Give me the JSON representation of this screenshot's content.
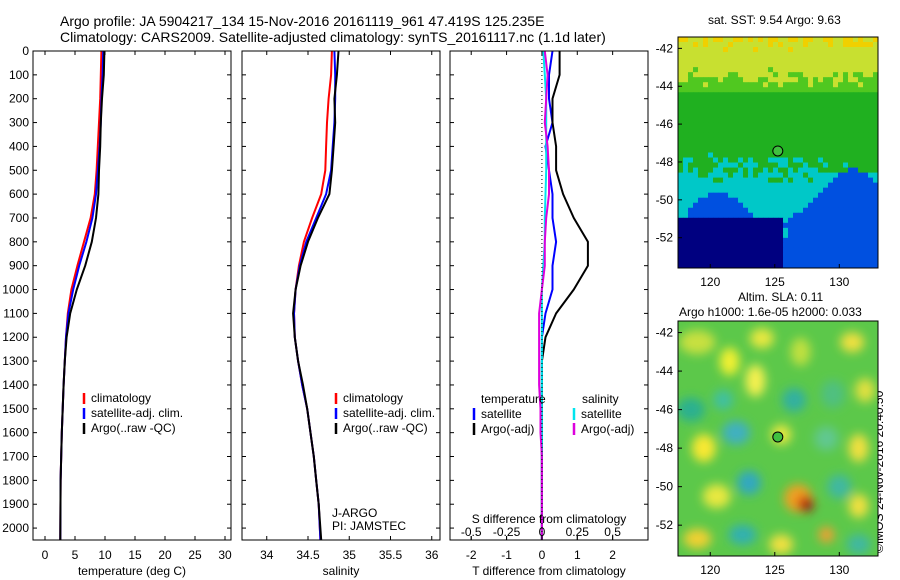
{
  "header": {
    "line1": "Argo profile: JA 5904217_134 15-Nov-2016 20161119_961 47.419S 125.235E",
    "line2": "Climatology: CARS2009. Satellite-adjusted climatology: synTS_20161117.nc (1.1d later)"
  },
  "stamp": "©IMOS 24-Nov-2016 20:40:50",
  "colors": {
    "climatology": "#ff0000",
    "satellite": "#0000ff",
    "argo": "#000000",
    "cyan": "#00e5ee",
    "magenta": "#dd00dd"
  },
  "chart_data": [
    {
      "type": "line",
      "id": "temperature",
      "xlabel": "temperature (deg C)",
      "xlim": [
        -2,
        31
      ],
      "xticks": [
        0,
        5,
        10,
        15,
        20,
        25,
        30
      ],
      "ylim": [
        0,
        2050
      ],
      "yticks": [
        0,
        100,
        200,
        300,
        400,
        500,
        600,
        700,
        800,
        900,
        1000,
        1100,
        1200,
        1300,
        1400,
        1500,
        1600,
        1700,
        1800,
        1900,
        2000
      ],
      "legend": [
        "climatology",
        "satellite-adj. clim.",
        "Argo(..raw -QC)"
      ],
      "series": [
        {
          "name": "climatology",
          "color": "#ff0000",
          "x": [
            9.4,
            9.3,
            9.2,
            9.0,
            8.8,
            8.6,
            8.3,
            7.6,
            6.5,
            5.4,
            4.4,
            3.8,
            3.5,
            3.3,
            3.1,
            2.95,
            2.8,
            2.7,
            2.6,
            2.55
          ],
          "y": [
            0,
            100,
            200,
            300,
            400,
            500,
            600,
            700,
            800,
            900,
            1000,
            1100,
            1200,
            1300,
            1400,
            1500,
            1600,
            1700,
            1800,
            2050
          ]
        },
        {
          "name": "satellite-adj. clim.",
          "color": "#0000ff",
          "x": [
            9.7,
            9.6,
            9.4,
            9.3,
            9.1,
            8.8,
            8.5,
            7.9,
            6.9,
            5.7,
            4.7,
            3.9,
            3.5,
            3.3,
            3.1,
            2.95,
            2.8,
            2.7,
            2.6,
            2.55
          ],
          "y": [
            0,
            100,
            200,
            300,
            400,
            500,
            600,
            700,
            800,
            900,
            1000,
            1100,
            1200,
            1300,
            1400,
            1500,
            1600,
            1700,
            1800,
            2050
          ]
        },
        {
          "name": "Argo(..raw -QC)",
          "color": "#000000",
          "x": [
            9.9,
            9.8,
            9.5,
            9.3,
            9.2,
            9.0,
            8.9,
            8.5,
            7.8,
            6.7,
            5.3,
            4.2,
            3.6,
            3.3,
            3.1,
            2.95,
            2.8,
            2.7,
            2.6,
            2.55
          ],
          "y": [
            0,
            100,
            200,
            300,
            400,
            500,
            600,
            700,
            800,
            900,
            1000,
            1100,
            1200,
            1300,
            1400,
            1500,
            1600,
            1700,
            1800,
            2050
          ]
        }
      ]
    },
    {
      "type": "line",
      "id": "salinity",
      "xlabel": "salinity",
      "xlim": [
        33.7,
        36.1
      ],
      "xticks": [
        34,
        34.5,
        35,
        35.5,
        36
      ],
      "ylim": [
        0,
        2050
      ],
      "legend": [
        "climatology",
        "satellite-adj. clim.",
        "Argo(..raw -QC)"
      ],
      "annotation": [
        "J-ARGO",
        "PI: JAMSTEC"
      ],
      "series": [
        {
          "name": "climatology",
          "color": "#ff0000",
          "x": [
            34.79,
            34.78,
            34.75,
            34.73,
            34.72,
            34.71,
            34.66,
            34.55,
            34.45,
            34.39,
            34.35,
            34.33,
            34.34,
            34.38,
            34.43,
            34.49,
            34.53,
            34.57,
            34.6,
            34.63,
            34.65
          ],
          "y": [
            0,
            100,
            200,
            300,
            400,
            500,
            600,
            700,
            800,
            900,
            1000,
            1100,
            1200,
            1300,
            1400,
            1500,
            1600,
            1700,
            1800,
            1900,
            2050
          ]
        },
        {
          "name": "satellite-adj. clim.",
          "color": "#0000ff",
          "x": [
            34.82,
            34.83,
            34.83,
            34.82,
            34.8,
            34.78,
            34.72,
            34.6,
            34.48,
            34.4,
            34.35,
            34.33,
            34.34,
            34.38,
            34.43,
            34.49,
            34.53,
            34.57,
            34.6,
            34.63,
            34.65
          ],
          "y": [
            0,
            100,
            200,
            300,
            400,
            500,
            600,
            700,
            800,
            900,
            1000,
            1100,
            1200,
            1300,
            1400,
            1500,
            1600,
            1700,
            1800,
            1900,
            2050
          ]
        },
        {
          "name": "Argo(..raw -QC)",
          "color": "#000000",
          "x": [
            34.87,
            34.85,
            34.82,
            34.83,
            34.81,
            34.79,
            34.76,
            34.62,
            34.5,
            34.41,
            34.35,
            34.32,
            34.34,
            34.38,
            34.44,
            34.49,
            34.53,
            34.57,
            34.6,
            34.63,
            34.66
          ],
          "y": [
            0,
            100,
            200,
            300,
            400,
            500,
            600,
            700,
            800,
            900,
            1000,
            1100,
            1200,
            1300,
            1400,
            1500,
            1600,
            1700,
            1800,
            1900,
            2050
          ]
        }
      ]
    },
    {
      "type": "line",
      "id": "difference",
      "xlabel": "T difference from climatology",
      "xlabel_top": "S difference from climatology",
      "xlim": [
        -2.6,
        3.0
      ],
      "xticks": [
        -2,
        -1,
        0,
        1,
        2
      ],
      "xticks_s": [
        -0.5,
        -0.25,
        0,
        0.25,
        0.5
      ],
      "ylim": [
        0,
        2050
      ],
      "legend_left_title": "temperature",
      "legend_right_title": "salinity",
      "legend": [
        "satellite",
        "Argo(-adj)",
        "satellite",
        "Argo(-adj)"
      ],
      "series": [
        {
          "name": "T satellite",
          "color": "#0000ff",
          "x": [
            0.3,
            0.2,
            0.2,
            0.3,
            0.1,
            0.2,
            0.3,
            0.3,
            0.4,
            0.3,
            0.3,
            0.1,
            0.0,
            0.0,
            0.0,
            0.0,
            0.0,
            0.0,
            0.0,
            0.0,
            0.0
          ],
          "y": [
            0,
            100,
            200,
            300,
            400,
            500,
            600,
            700,
            800,
            900,
            1000,
            1100,
            1200,
            1300,
            1400,
            1500,
            1600,
            1700,
            1800,
            1900,
            2050
          ]
        },
        {
          "name": "T Argo(-adj)",
          "color": "#000000",
          "x": [
            0.5,
            0.5,
            0.3,
            0.3,
            0.4,
            0.4,
            0.6,
            0.9,
            1.3,
            1.3,
            0.9,
            0.4,
            0.1,
            0.0,
            0.0,
            0.0,
            0.0,
            0.0,
            0.0,
            0.0,
            0.0
          ],
          "y": [
            0,
            100,
            200,
            300,
            400,
            500,
            600,
            700,
            800,
            900,
            1000,
            1100,
            1200,
            1300,
            1400,
            1500,
            1600,
            1700,
            1800,
            1900,
            2050
          ]
        },
        {
          "name": "S satellite",
          "color": "#00e5ee",
          "x": [
            0.01,
            0.02,
            0.03,
            0.03,
            0.03,
            0.03,
            0.025,
            0.02,
            0.02,
            0.01,
            0.0,
            0.0,
            0.0,
            0.0,
            0.0,
            0.0,
            0.0,
            0.0,
            0.0,
            0.0,
            0.0
          ],
          "y": [
            0,
            100,
            200,
            300,
            400,
            500,
            600,
            700,
            800,
            900,
            1000,
            1100,
            1200,
            1300,
            1400,
            1500,
            1600,
            1700,
            1800,
            1900,
            2050
          ]
        },
        {
          "name": "S Argo(-adj)",
          "color": "#dd00dd",
          "x": [
            0.02,
            0.04,
            0.03,
            0.02,
            0.04,
            0.05,
            0.05,
            0.03,
            0.02,
            0.02,
            0.0,
            -0.02,
            -0.02,
            -0.02,
            -0.02,
            -0.01,
            -0.01,
            0.0,
            0.0,
            0.0,
            0.0
          ],
          "y": [
            0,
            100,
            200,
            300,
            400,
            500,
            600,
            700,
            800,
            900,
            1000,
            1100,
            1200,
            1300,
            1400,
            1500,
            1600,
            1700,
            1800,
            1900,
            2050
          ]
        }
      ]
    },
    {
      "type": "heatmap",
      "id": "sst_map",
      "title": "sat. SST: 9.54  Argo: 9.63",
      "xticks": [
        120,
        125,
        130
      ],
      "yticks": [
        -42,
        -44,
        -46,
        -48,
        -50,
        -52
      ],
      "xlim": [
        117.5,
        133
      ],
      "ylim": [
        -53.6,
        -41.4
      ],
      "marker": {
        "lon": 125.235,
        "lat": -47.419
      }
    },
    {
      "type": "heatmap",
      "id": "sla_map",
      "title": "Altim. SLA: 0.11",
      "subtitle": "Argo h1000: 1.6e-05 h2000: 0.033",
      "xticks": [
        120,
        125,
        130
      ],
      "yticks": [
        -42,
        -44,
        -46,
        -48,
        -50,
        -52
      ],
      "xlim": [
        117.5,
        133
      ],
      "ylim": [
        -53.6,
        -41.4
      ],
      "marker": {
        "lon": 125.235,
        "lat": -47.419
      }
    }
  ]
}
